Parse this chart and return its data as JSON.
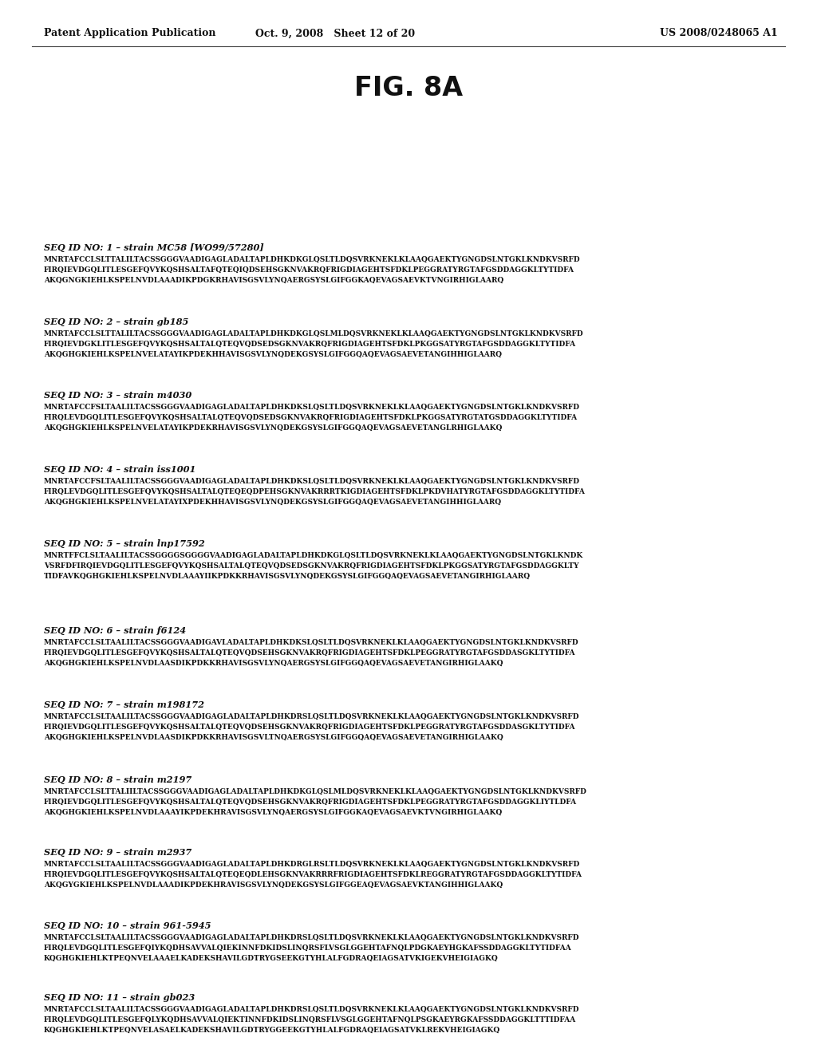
{
  "background_color": "#ffffff",
  "header_left": "Patent Application Publication",
  "header_center": "Oct. 9, 2008   Sheet 12 of 20",
  "header_right": "US 2008/0248065 A1",
  "title": "FIG. 8A",
  "sequences": [
    {
      "id_line": "SEQ ID NO: 1 – strain MC58 [WO99/57280]",
      "seq": "MNRTAFCCLSLTTALILTACSSGGGVAADIGAGLADALTAPLDHKDKGLQSLTLDQSVRKNEKLKLAAQGAEKTYGNGDSLNTGKLKNDKVSRFD\nFIRQIEVDGQLITLESGEFQVYKQSHSALTAFQTEQIQDSEHSGKNVAKRQFRIGDIAGEHTSFDKLPEGGRATYRGTAFGSDDAGGKLTYTIDFA\nAKQGNGKIEHLKSPELNVDLAAADIKPDGKRHAVISGSVLYNQAERGSYSLGIFGGKAQEVAGSAEVKTVNGIRHIGLAARQ"
    },
    {
      "id_line": "SEQ ID NO: 2 – strain gb185",
      "seq": "MNRTAFCCLSLTTALILTACSSGGGVAADIGAGLADALTAPLDHKDKGLQSLMLDQSVRKNEKLKLAAQGAEKTYGNGDSLNTGKLKNDKVSRFD\nFIRQIEVDGKLITLESGEFQVYKQSHSALTALQTEQVQDSEDSGKNVAKRQFRIGDIAGEHTSFDKLPKGGSATYRGTAFGSDDAGGKLTYTIDFA\nAKQGHGKIEHLKSPELNVELATAYIKPDEKHHAVISGSVLYNQDEKGSYSLGIFGGQAQEVAGSAEVETANGIHHIGLAARQ"
    },
    {
      "id_line": "SEQ ID NO: 3 – strain m4030",
      "seq": "MNRTAFCCFSLTAALILTACSSGGGVAADIGAGLADALTAPLDHKDKSLQSLTLDQSVRKNEKLKLAAQGAEKTYGNGDSLNTGKLKNDKVSRFD\nFIRQLEVDGQLITLESGEFQVYKQSHSALTALQTEQVQDSEDSGKNVAKRQFRIGDIAGEHTSFDKLPKGGSATYRGTATGSDDAGGKLTYTIDFA\nAKQGHGKIEHLKSPELNVELATAYIKPDEKRHAVISGSVLYNQDEKGSYSLGIFGGQAQEVAGSAEVETANGLRHIGLAAKQ"
    },
    {
      "id_line": "SEQ ID NO: 4 – strain iss1001",
      "seq": "MNRTAFCCFSLTAALILTACSSGGGVAADIGAGLADALTAPLDHKDKSLQSLTLDQSVRKNEKLKLAAQGAEKTYGNGDSLNTGKLKNDKVSRFD\nFIRQLEVDGQLITLESGEFQVYKQSHSALTALQTEQEQDPEHSGKNVAKRRRTKIGDIAGEHTSFDKLPKDVHATYRGTAFGSDDAGGKLTYTIDFA\nAKQGHGKIEHLKSPELNVELATAYIXPDEKHHAVISGSVLYNQDEKGSYSLGIFGGQAQEVAGSAEVETANGIHHIGLAARQ"
    },
    {
      "id_line": "SEQ ID NO: 5 – strain lnp17592",
      "seq": "MNRTFFCLSLTAALILTACSSGGGGSGGGGVAADIGAGLADALTAPLDHKDKGLQSLTLDQSVRKNEKLKLAAQGAEKTYGNGDSLNTGKLKNDK\nVSRFDFIRQIEVDGQLITLESGEFQVYKQSHSALTALQTEQVQDSEDSGKNVAKRQFRIGDIAGEHTSFDKLPKGGSATYRGTAFGSDDAGGKLTY\nTIDFAVKQGHGKIEHLKSPELNVDLAAAYIIKPDKKRHAVISGSVLYNQDEKGSYSLGIFGGQAQEVAGSAEVETANGIRHIGLAARQ"
    },
    {
      "id_line": "SEQ ID NO: 6 – strain f6124",
      "seq": "MNRTAFCCLSLTAALILTACSSGGGVAADIGAVLADALTAPLDHKDKSLQSLTLDQSVRKNEKLKLAAQGAEKTYGNGDSLNTGKLKNDKVSRFD\nFIRQIEVDGQLITLESGEFQVYKQSHSALTALQTEQVQDSEHSGKNVAKRQFRIGDIAGEHTSFDKLPEGGRATYRGTAFGSDDASGKLTYTIDFA\nAKQGHGKIEHLKSPELNVDLAASDIKPDKKRHAVISGSVLYNQAERGSYSLGIFGGQAQEVAGSAEVETANGIRHIGLAAKQ"
    },
    {
      "id_line": "SEQ ID NO: 7 – strain m198172",
      "seq": "MNRTAFCCLSLTAALILTACSSGGGVAADIGAGLADALTAPLDHKDRSLQSLTLDQSVRKNEKLKLAAQGAEKTYGNGDSLNTGKLKNDKVSRFD\nFIRQIEVDGQLITLESGEFQVYKQSHSALTALQTEQVQDSEHSGKNVAKRQFRIGDIAGEHTSFDKLPEGGRATYRGTAFGSDDASGKLTYTIDFA\nAKQGHGKIEHLKSPELNVDLAASDIKPDKKRHAVISGSVLTNQAERGSYSLGIFGGQAQEVAGSAEVETANGIRHIGLAAKQ"
    },
    {
      "id_line": "SEQ ID NO: 8 – strain m2197",
      "seq": "MNRTAFCCLSLTTALIILTACSSGGGVAADIGAGLADALTAPLDHKDKGLQSLMLDQSVRKNEKLKLAAQGAEKTYGNGDSLNTGKLKNDKVSRFD\nFIRQIEVDGQLITLESGEFQVYKQSHSALTALQTEQVQDSEHSGKNVAKRQFRIGDIAGEHTSFDKLPEGGRATYRGTAFGSDDAGGKLIYTLDFA\nAKQGHGKIEHLKSPELNVDLAAAYIKPDEKHRAVISGSVLYNQAERGSYSLGIFGGKAQEVAGSAEVKTVNGIRHIGLAAKQ"
    },
    {
      "id_line": "SEQ ID NO: 9 – strain m2937",
      "seq": "MNRTAFCCLSLTAALILTACSSGGGVAADIGAGLADALTAPLDHKDRGLRSLTLDQSVRKNEKLKLAAQGAEKTYGNGDSLNTGKLKNDKVSRFD\nFIRQIEVDGQLITLESGEFQVYKQSHSALTALQTEQEQDLEHSGKNVAKRRRFRIGDIAGEHTSFDKLREGGRATYRGTAFGSDDAGGKLTYTIDFA\nAKQGYGKIEHLKSPELNVDLAAADIKPDEKHRAVISGSVLYNQDEKGSYSLGIFGGEAQEVAGSAEVKTANGIHHIGLAAKQ"
    },
    {
      "id_line": "SEQ ID NO: 10 – strain 961-5945",
      "seq": "MNRTAFCCLSLTAALILTACSSGGGVAADIGAGLADALTAPLDHKDRSLQSLTLDQSVRKNEKLKLAAQGAEKTYGNGDSLNTGKLKNDKVSRFD\nFIRQLEVDGQLITLESGEFQIYKQDHSAVVALQIEKINNFDKIDSLINQRSFLVSGLGGEHTAFNQLPDGKAEYHGKAFSSDDAGGKLTYTIDFAA\nKQGHGKIEHLKTPEQNVELAAAELKADEKSHAVILGDTRYGSEEKGTYHLALFGDRAQEIAGSATVKIGEKVHEIGIAGKQ"
    },
    {
      "id_line": "SEQ ID NO: 11 – strain gb023",
      "seq": "MNRTAFCCLSLTAALILTACSSGGGVAADIGAGLADALTAPLDHKDRSLQSLTLDQSVRKNEKLKLAAQGAEKTYGNGDSLNTGKLKNDKVSRFD\nFIRQLEVDGQLITLESGEFQLYKQDHSAVVALQIEKTINNFDKIDSLINQRSFLVSGLGGEHTAFNQLPSGKAEYRGKAFSSDDAGGKLTTTIDFAA\nKQGHGKIEHLKTPEQNVELASAELKADEKSHAVILGDTRYGGEEKGTYHLALFGDRAQEIAGSATVKLREKVHEIGIAGKQ"
    }
  ]
}
